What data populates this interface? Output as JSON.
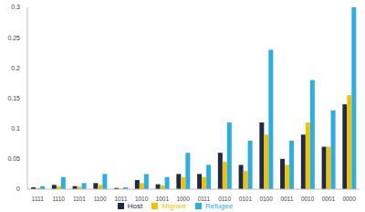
{
  "chart_data": {
    "type": "bar",
    "categories": [
      "1111",
      "1110",
      "1101",
      "1100",
      "1011",
      "1010",
      "1001",
      "1000",
      "0111",
      "0110",
      "0101",
      "0100",
      "0011",
      "0010",
      "0001",
      "0000"
    ],
    "series": [
      {
        "name": "Host",
        "color": "#1c2b4a",
        "values": [
          0.003,
          0.007,
          0.005,
          0.01,
          0.002,
          0.015,
          0.008,
          0.025,
          0.025,
          0.06,
          0.04,
          0.11,
          0.05,
          0.09,
          0.07,
          0.14
        ]
      },
      {
        "name": "Migrant",
        "color": "#f2c200",
        "values": [
          0.002,
          0.005,
          0.004,
          0.007,
          0.001,
          0.01,
          0.006,
          0.02,
          0.02,
          0.045,
          0.03,
          0.09,
          0.04,
          0.11,
          0.07,
          0.155
        ]
      },
      {
        "name": "Refugee",
        "color": "#29aee8",
        "values": [
          0.005,
          0.02,
          0.01,
          0.025,
          0.003,
          0.025,
          0.02,
          0.06,
          0.04,
          0.11,
          0.08,
          0.23,
          0.08,
          0.18,
          0.13,
          0.3
        ]
      }
    ],
    "ylim": [
      0,
      0.3
    ],
    "yticks": [
      0,
      0.05,
      0.1,
      0.15,
      0.2,
      0.25,
      0.3
    ],
    "grid": false,
    "legend": "bottom"
  }
}
